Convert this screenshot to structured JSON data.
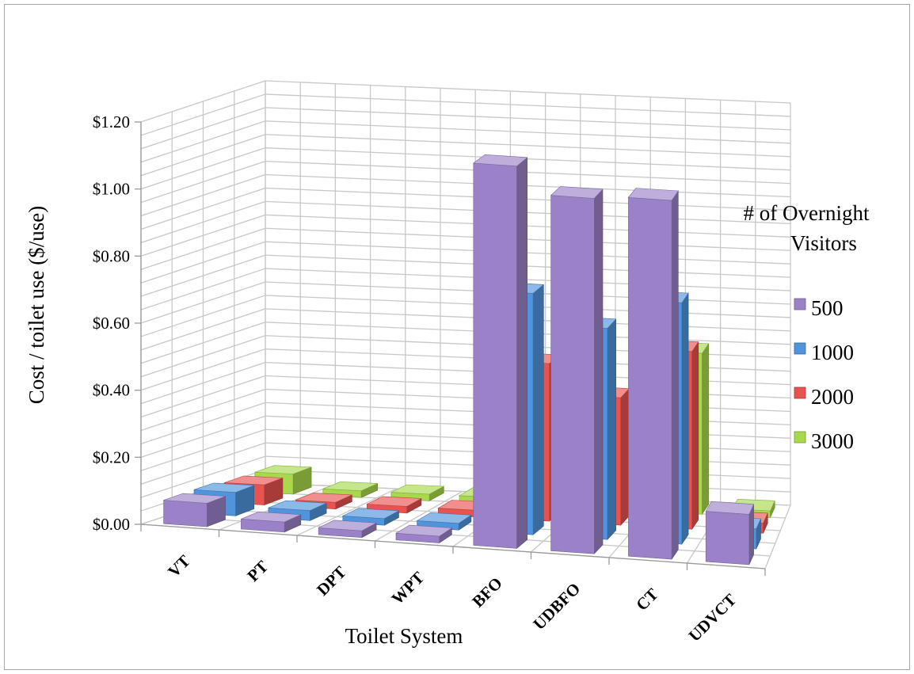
{
  "chart_data": {
    "type": "bar",
    "subtype": "3d-clustered-column",
    "title": "",
    "xlabel": "Toilet System",
    "ylabel": "Cost / toilet use ($/use)",
    "ylim": [
      0,
      1.2
    ],
    "y_ticks": [
      "$0.00",
      "$0.20",
      "$0.40",
      "$0.60",
      "$0.80",
      "$1.00",
      "$1.20"
    ],
    "y_tick_values": [
      0,
      0.2,
      0.4,
      0.6,
      0.8,
      1.0,
      1.2
    ],
    "grid": true,
    "categories": [
      "VT",
      "PT",
      "DPT",
      "WPT",
      "BFO",
      "UDBFO",
      "CT",
      "UDVCT"
    ],
    "legend": {
      "title": "# of Overnight Visitors",
      "position": "right"
    },
    "series": [
      {
        "name": "500",
        "color": "#9b82c8",
        "values": [
          0.07,
          0.03,
          0.02,
          0.02,
          1.14,
          1.06,
          1.07,
          0.15
        ]
      },
      {
        "name": "1000",
        "color": "#4f94dc",
        "values": [
          0.07,
          0.03,
          0.02,
          0.02,
          0.72,
          0.63,
          0.72,
          0.06
        ]
      },
      {
        "name": "2000",
        "color": "#e8524f",
        "values": [
          0.06,
          0.02,
          0.02,
          0.02,
          0.47,
          0.38,
          0.53,
          0.03
        ]
      },
      {
        "name": "3000",
        "color": "#a8d84c",
        "values": [
          0.06,
          0.02,
          0.02,
          0.02,
          0.05,
          0.3,
          0.48,
          0.02
        ]
      }
    ]
  }
}
